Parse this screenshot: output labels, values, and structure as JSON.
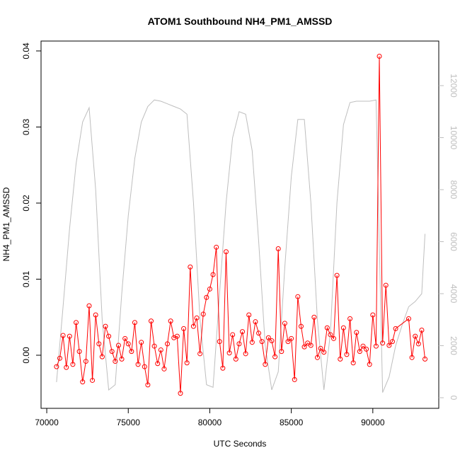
{
  "chart_data": {
    "type": "line",
    "title": "ATOM1 Southbound NH4_PM1_AMSSD",
    "xlabel": "UTC Seconds",
    "ylabel": "NH4_PM1_AMSSD",
    "xlim": [
      69650,
      94045
    ],
    "xticks": [
      70000,
      75000,
      80000,
      85000,
      90000
    ],
    "ylim": [
      -0.00698,
      0.0413
    ],
    "yticks": [
      {
        "value": 0,
        "label": "0.00"
      },
      {
        "value": 0.01,
        "label": "0.01"
      },
      {
        "value": 0.02,
        "label": "0.02"
      },
      {
        "value": 0.03,
        "label": "0.03"
      },
      {
        "value": 0.04,
        "label": "0.04"
      }
    ],
    "y2lim": [
      -408,
      13714
    ],
    "y2ticks": [
      0,
      2000,
      4000,
      6000,
      8000,
      10000,
      12000
    ],
    "series": [
      {
        "color": "#bebebe",
        "axis": "y2",
        "markers": false,
        "x": [
          70600,
          71000,
          71400,
          71800,
          72200,
          72600,
          73000,
          73400,
          73800,
          74200,
          74600,
          75000,
          75400,
          75800,
          76200,
          76600,
          77000,
          77400,
          77800,
          78200,
          78600,
          79000,
          79400,
          79800,
          80200,
          80600,
          81000,
          81400,
          81800,
          82200,
          82600,
          83000,
          83400,
          83800,
          84200,
          84600,
          85000,
          85400,
          85800,
          86200,
          86600,
          87000,
          87400,
          87800,
          88200,
          88600,
          89000,
          89400,
          89800,
          90200,
          90600,
          91000,
          91400,
          91800,
          92200,
          92600,
          93000,
          93200
        ],
        "values": [
          600,
          3500,
          6500,
          9000,
          10600,
          11150,
          8000,
          3000,
          300,
          500,
          4000,
          7000,
          9200,
          10600,
          11200,
          11450,
          11400,
          11300,
          11200,
          11100,
          10900,
          7500,
          3000,
          500,
          400,
          4000,
          7500,
          10000,
          11000,
          10900,
          9500,
          6000,
          2000,
          300,
          1000,
          5000,
          8500,
          10700,
          10700,
          7500,
          3000,
          300,
          2500,
          7500,
          10500,
          11350,
          11400,
          11400,
          11400,
          11450,
          200,
          800,
          2000,
          2800,
          3500,
          3700,
          4000,
          6300
        ]
      },
      {
        "color": "#ff0000",
        "markers": true,
        "x": [
          70600,
          70800,
          71000,
          71200,
          71400,
          71600,
          71800,
          72000,
          72200,
          72400,
          72600,
          72800,
          73000,
          73200,
          73400,
          73600,
          73800,
          74000,
          74200,
          74400,
          74600,
          74800,
          75000,
          75200,
          75400,
          75600,
          75800,
          76000,
          76200,
          76400,
          76600,
          76800,
          77000,
          77200,
          77400,
          77600,
          77800,
          78000,
          78200,
          78400,
          78600,
          78800,
          79000,
          79200,
          79400,
          79600,
          79800,
          80000,
          80200,
          80400,
          80600,
          80800,
          81000,
          81200,
          81400,
          81600,
          81800,
          82000,
          82200,
          82400,
          82600,
          82800,
          83000,
          83200,
          83400,
          83600,
          83800,
          84000,
          84200,
          84400,
          84600,
          84800,
          85000,
          85200,
          85400,
          85600,
          85800,
          86000,
          86200,
          86400,
          86600,
          86800,
          87000,
          87200,
          87400,
          87600,
          87800,
          88000,
          88200,
          88400,
          88600,
          88800,
          89000,
          89200,
          89400,
          89600,
          89800,
          90000,
          90200,
          90400,
          90600,
          90800,
          91000,
          91200,
          91400,
          92200,
          92400,
          92600,
          92800,
          93000,
          93200
        ],
        "values": [
          -0.0015,
          -0.0004,
          0.0026,
          -0.0016,
          0.0025,
          -0.0012,
          0.0043,
          0.0005,
          -0.0035,
          -0.0008,
          0.0065,
          -0.0033,
          0.0053,
          0.0015,
          -0.0002,
          0.0038,
          0.0025,
          0.0005,
          -0.0008,
          0.0013,
          -0.0005,
          0.0022,
          0.0015,
          0.0005,
          0.0043,
          -0.0012,
          0.0017,
          -0.0015,
          -0.0039,
          0.0045,
          0.0012,
          -0.0011,
          0.0007,
          -0.0018,
          0.0015,
          0.0045,
          0.0023,
          0.0025,
          -0.005,
          0.0035,
          -0.001,
          0.0116,
          0.0038,
          0.0049,
          0.0002,
          0.0054,
          0.0076,
          0.0087,
          0.0106,
          0.0142,
          0.0018,
          -0.0017,
          0.0136,
          0.0003,
          0.0027,
          -0.0005,
          0.0015,
          0.0031,
          0.0002,
          0.0053,
          0.0017,
          0.0044,
          0.0029,
          0.0018,
          -0.0012,
          0.0023,
          0.0019,
          -0.0002,
          0.014,
          0.0005,
          0.0042,
          0.0018,
          0.0022,
          -0.0032,
          0.0077,
          0.0038,
          0.0011,
          0.0016,
          0.0013,
          0.005,
          -0.0003,
          0.0009,
          0.0004,
          0.0036,
          0.0027,
          0.0022,
          0.0105,
          -0.0005,
          0.0036,
          0.0001,
          0.0048,
          -0.001,
          0.003,
          0.0005,
          0.0012,
          0.0008,
          -0.0012,
          0.0053,
          0.0012,
          0.0393,
          0.0016,
          0.0092,
          0.0013,
          0.0018,
          0.0035,
          0.0048,
          -0.0003,
          0.0025,
          0.0015,
          0.0033,
          -0.0005
        ]
      }
    ]
  }
}
